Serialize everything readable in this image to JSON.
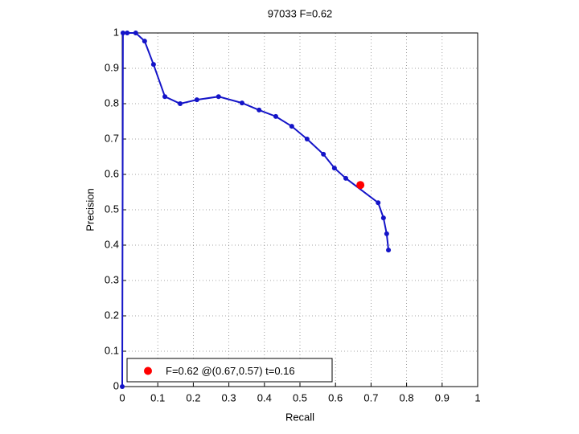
{
  "chart_data": {
    "type": "line",
    "title": "97033 F=0.62",
    "x_label": "Recall",
    "y_label": "Precision",
    "x": [
      0,
      0.002,
      0.014,
      0.038,
      0.063,
      0.088,
      0.12,
      0.163,
      0.21,
      0.271,
      0.337,
      0.385,
      0.432,
      0.477,
      0.52,
      0.566,
      0.597,
      0.629,
      0.72,
      0.735,
      0.744,
      0.749
    ],
    "series": [
      {
        "color": "#1414c8",
        "values": [
          0,
          1.0,
          1.0,
          1.0,
          0.977,
          0.911,
          0.82,
          0.8,
          0.811,
          0.82,
          0.802,
          0.782,
          0.764,
          0.736,
          0.7,
          0.657,
          0.618,
          0.589,
          0.52,
          0.477,
          0.432,
          0.386
        ]
      }
    ],
    "highlight": {
      "x": 0.67,
      "y": 0.57,
      "color": "#ff0000",
      "label": "F=0.62 @(0.67,0.57) t=0.16"
    },
    "xlim": [
      0,
      1
    ],
    "ylim": [
      0,
      1
    ],
    "xticks": [
      0,
      0.1,
      0.2,
      0.3,
      0.4,
      0.5,
      0.6,
      0.7,
      0.8,
      0.9,
      1
    ],
    "yticks": [
      0,
      0.1,
      0.2,
      0.3,
      0.4,
      0.5,
      0.6,
      0.7,
      0.8,
      0.9,
      1
    ],
    "grid": true,
    "legend_position": "lower left"
  }
}
